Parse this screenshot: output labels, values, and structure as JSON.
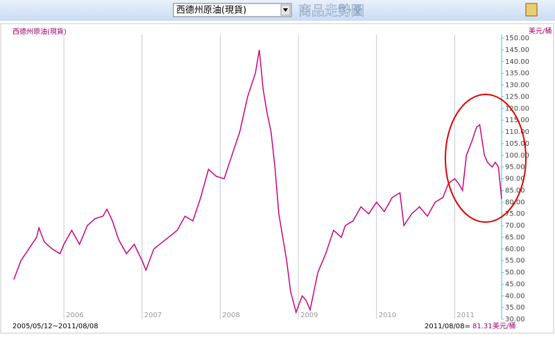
{
  "toolbar": {
    "selector": "西德州原油(現貨)",
    "title": "商品走勢圖"
  },
  "chart_data": {
    "type": "line",
    "title": "西德州原油(現貨)",
    "unit_label": "美元/桶",
    "range_label": "2005/05/12~2011/08/08",
    "last_label": "2011/08/08=",
    "last_value": 81.31,
    "last_unit": "美元/桶",
    "color": "#c8007f",
    "x": [
      2005.36,
      2005.45,
      2005.55,
      2005.65,
      2005.68,
      2005.75,
      2005.85,
      2005.95,
      2006.0,
      2006.1,
      2006.2,
      2006.3,
      2006.4,
      2006.5,
      2006.55,
      2006.62,
      2006.7,
      2006.8,
      2006.9,
      2007.0,
      2007.05,
      2007.15,
      2007.3,
      2007.45,
      2007.55,
      2007.65,
      2007.75,
      2007.85,
      2007.95,
      2008.05,
      2008.15,
      2008.25,
      2008.35,
      2008.45,
      2008.5,
      2008.55,
      2008.6,
      2008.65,
      2008.7,
      2008.75,
      2008.8,
      2008.85,
      2008.9,
      2008.97,
      2009.05,
      2009.1,
      2009.15,
      2009.25,
      2009.35,
      2009.45,
      2009.55,
      2009.6,
      2009.7,
      2009.8,
      2009.9,
      2010.0,
      2010.1,
      2010.2,
      2010.3,
      2010.35,
      2010.45,
      2010.55,
      2010.65,
      2010.75,
      2010.85,
      2010.92,
      2011.0,
      2011.05,
      2011.1,
      2011.15,
      2011.22,
      2011.28,
      2011.32,
      2011.38,
      2011.42,
      2011.48,
      2011.52,
      2011.56,
      2011.6
    ],
    "values": [
      47,
      55,
      60,
      65,
      69,
      63,
      60,
      58,
      62,
      68,
      62,
      70,
      73,
      74,
      77,
      72,
      64,
      58,
      62,
      55,
      51,
      60,
      64,
      68,
      74,
      72,
      82,
      94,
      91,
      90,
      100,
      110,
      125,
      135,
      145,
      128,
      118,
      110,
      95,
      75,
      65,
      55,
      42,
      33,
      40,
      38,
      34,
      50,
      58,
      68,
      65,
      70,
      72,
      78,
      75,
      80,
      76,
      82,
      84,
      70,
      75,
      78,
      74,
      80,
      82,
      88,
      90,
      88,
      85,
      100,
      106,
      112,
      113,
      100,
      97,
      95,
      97,
      95,
      81.31
    ],
    "xlim": [
      2005.36,
      2011.6
    ],
    "xticks": [
      2006,
      2007,
      2008,
      2009,
      2010,
      2011
    ],
    "ylim": [
      30,
      150
    ],
    "yticks": [
      {
        "value": 30,
        "label": "30.00"
      },
      {
        "value": 35,
        "label": "35.00"
      },
      {
        "value": 40,
        "label": "40.00"
      },
      {
        "value": 45,
        "label": "45.00"
      },
      {
        "value": 50,
        "label": "50.00"
      },
      {
        "value": 55,
        "label": "55.00"
      },
      {
        "value": 60,
        "label": "60.00"
      },
      {
        "value": 65,
        "label": "65.00"
      },
      {
        "value": 70,
        "label": "70.00"
      },
      {
        "value": 75,
        "label": "75.00"
      },
      {
        "value": 80,
        "label": "80.00"
      },
      {
        "value": 85,
        "label": "85.00"
      },
      {
        "value": 90,
        "label": "90.00"
      },
      {
        "value": 95,
        "label": "95.00"
      },
      {
        "value": 100,
        "label": "100.00"
      },
      {
        "value": 105,
        "label": "105.00"
      },
      {
        "value": 110,
        "label": "110.00"
      },
      {
        "value": 115,
        "label": "115.00"
      },
      {
        "value": 120,
        "label": "120.00"
      },
      {
        "value": 125,
        "label": "125.00"
      },
      {
        "value": 130,
        "label": "130.00"
      },
      {
        "value": 135,
        "label": "135.00"
      },
      {
        "value": 140,
        "label": "140.00"
      },
      {
        "value": 145,
        "label": "145.00"
      },
      {
        "value": 150,
        "label": "150.00"
      }
    ],
    "grid": true
  }
}
